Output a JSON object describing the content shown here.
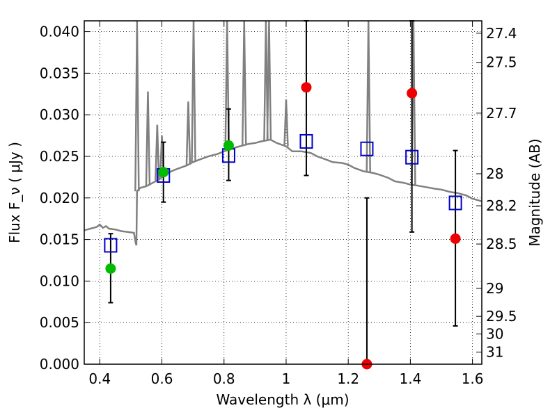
{
  "chart_data": {
    "type": "scatter",
    "title": "",
    "xlabel": "Wavelength  λ (μm)",
    "ylabel": "Flux  F_ν  ( μJy )",
    "y2label": "Magnitude (AB)",
    "xlim": [
      0.35,
      1.63
    ],
    "ylim": [
      0.0,
      0.0413
    ],
    "grid": true,
    "x_ticks": [
      0.4,
      0.6,
      0.8,
      1.0,
      1.2,
      1.4,
      1.6
    ],
    "x_tick_labels": [
      "0.4",
      "0.6",
      "0.8",
      "1",
      "1.2",
      "1.4",
      "1.6"
    ],
    "y_ticks": [
      0.0,
      0.005,
      0.01,
      0.015,
      0.02,
      0.025,
      0.03,
      0.035,
      0.04
    ],
    "y_tick_labels": [
      "0.000",
      "0.005",
      "0.010",
      "0.015",
      "0.020",
      "0.025",
      "0.030",
      "0.035",
      "0.040"
    ],
    "y2_ticks": [
      27.4,
      27.5,
      27.7,
      28,
      28.2,
      28.5,
      29,
      29.5,
      30,
      31
    ],
    "y2_tick_labels": [
      "27.4",
      "27.5",
      "27.7",
      "28",
      "28.2",
      "28.5",
      "29",
      "29.5",
      "30",
      "31"
    ],
    "colors": {
      "template": "#808080",
      "model": "#0000cc",
      "detected": "#00bb00",
      "undetected": "#ee0000",
      "errorbar": "#000000"
    },
    "series": [
      {
        "kind": "line",
        "x": [
          0.35,
          0.37,
          0.39,
          0.4,
          0.41,
          0.42,
          0.43,
          0.45,
          0.47,
          0.49,
          0.51,
          0.515,
          0.518,
          0.52,
          0.53,
          0.55,
          0.57,
          0.59,
          0.61,
          0.63,
          0.65,
          0.68,
          0.7,
          0.72,
          0.75,
          0.78,
          0.8,
          0.83,
          0.86,
          0.88,
          0.9,
          0.92,
          0.95,
          0.97,
          1.0,
          1.02,
          1.05,
          1.08,
          1.1,
          1.13,
          1.15,
          1.18,
          1.2,
          1.22,
          1.25,
          1.28,
          1.3,
          1.33,
          1.35,
          1.38,
          1.4,
          1.42,
          1.45,
          1.48,
          1.5,
          1.53,
          1.55,
          1.58,
          1.6,
          1.63
        ],
        "y": [
          0.0161,
          0.0163,
          0.0165,
          0.0168,
          0.0164,
          0.0166,
          0.0163,
          0.0162,
          0.016,
          0.0159,
          0.0158,
          0.0147,
          0.0143,
          0.0208,
          0.0212,
          0.0214,
          0.0218,
          0.0222,
          0.0228,
          0.0232,
          0.0235,
          0.0239,
          0.0243,
          0.0246,
          0.025,
          0.0253,
          0.0256,
          0.026,
          0.0263,
          0.0265,
          0.0266,
          0.0268,
          0.027,
          0.0266,
          0.0262,
          0.0256,
          0.0256,
          0.0254,
          0.025,
          0.0246,
          0.0243,
          0.0242,
          0.024,
          0.0236,
          0.0232,
          0.023,
          0.0228,
          0.0224,
          0.022,
          0.0218,
          0.0216,
          0.0215,
          0.0213,
          0.0211,
          0.021,
          0.0207,
          0.0206,
          0.0203,
          0.0199,
          0.0196
        ],
        "emission_lines": [
          {
            "x": 0.52,
            "peak": 0.0413
          },
          {
            "x": 0.555,
            "peak": 0.0328
          },
          {
            "x": 0.585,
            "peak": 0.0288
          },
          {
            "x": 0.6,
            "peak": 0.0275
          },
          {
            "x": 0.685,
            "peak": 0.0316
          },
          {
            "x": 0.702,
            "peak": 0.0413
          },
          {
            "x": 0.81,
            "peak": 0.0413
          },
          {
            "x": 0.865,
            "peak": 0.0413
          },
          {
            "x": 0.935,
            "peak": 0.0413
          },
          {
            "x": 0.945,
            "peak": 0.0413
          },
          {
            "x": 1.0,
            "peak": 0.0318
          },
          {
            "x": 1.265,
            "peak": 0.0413
          },
          {
            "x": 1.41,
            "peak": 0.0413
          }
        ]
      },
      {
        "kind": "squares",
        "x": [
          0.435,
          0.605,
          0.815,
          1.065,
          1.26,
          1.405,
          1.545
        ],
        "y": [
          0.0143,
          0.0227,
          0.0251,
          0.0268,
          0.0259,
          0.0249,
          0.0194
        ]
      },
      {
        "kind": "points",
        "x": [
          0.435,
          0.605,
          0.815
        ],
        "y": [
          0.0115,
          0.0231,
          0.0263
        ],
        "color_key": "detected"
      },
      {
        "kind": "points",
        "x": [
          1.065,
          1.26,
          1.405,
          1.545
        ],
        "y": [
          0.0333,
          0.0,
          0.0326,
          0.0151
        ],
        "color_key": "undetected"
      },
      {
        "kind": "errorbars",
        "x": [
          0.435,
          0.605,
          0.815,
          1.065,
          1.26,
          1.405,
          1.545
        ],
        "low": [
          0.0074,
          0.0195,
          0.0221,
          0.0227,
          0.0,
          0.0159,
          0.0046
        ],
        "high": [
          0.0157,
          0.0267,
          0.0307,
          0.0413,
          0.02,
          0.0413,
          0.0257
        ]
      }
    ]
  }
}
